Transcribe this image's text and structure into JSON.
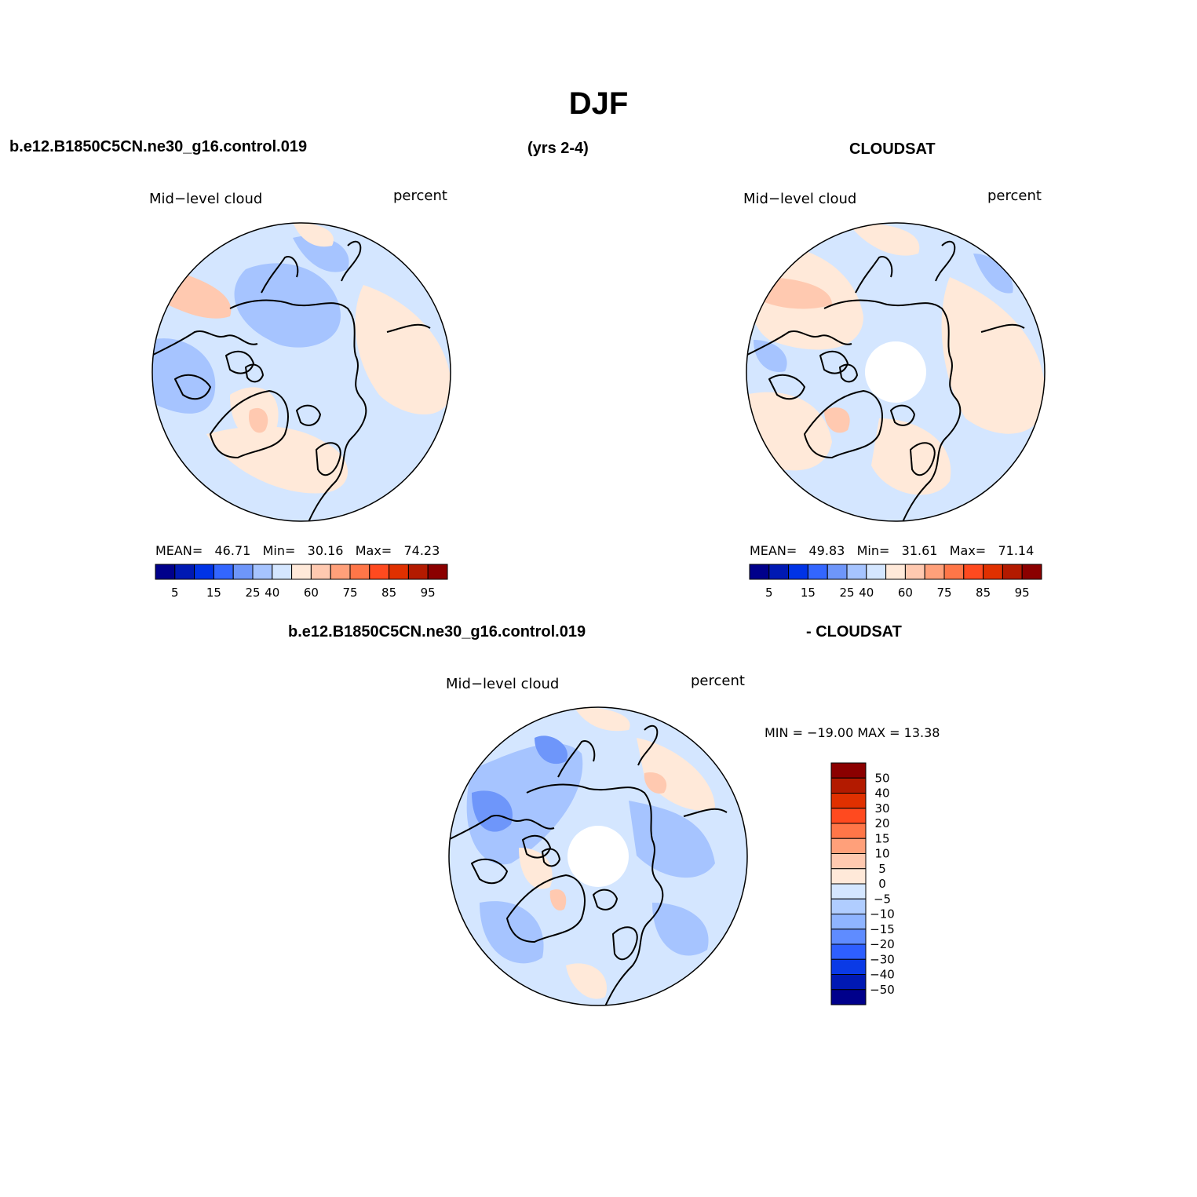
{
  "page": {
    "title": "DJF",
    "top_left_case": "b.e12.B1850C5CN.ne30_g16.control.019",
    "top_years": "(yrs 2-4)",
    "top_right_obs": "CLOUDSAT",
    "bottom_case": "b.e12.B1850C5CN.ne30_g16.control.019",
    "bottom_obs": "- CLOUDSAT"
  },
  "panels": [
    {
      "id": "model",
      "variable_label": "Mid−level cloud",
      "units_label": "percent",
      "stats": {
        "mean_label": "MEAN=",
        "mean": "46.71",
        "min_label": "Min=",
        "min": "30.16",
        "max_label": "Max=",
        "max": "74.23"
      }
    },
    {
      "id": "cloudsat",
      "variable_label": "Mid−level cloud",
      "units_label": "percent",
      "stats": {
        "mean_label": "MEAN=",
        "mean": "49.83",
        "min_label": "Min=",
        "min": "31.61",
        "max_label": "Max=",
        "max": "71.14"
      }
    },
    {
      "id": "difference",
      "variable_label": "Mid−level cloud",
      "units_label": "percent",
      "minmax_text": "MIN = −19.00 MAX =  13.38"
    }
  ],
  "colorbars": {
    "absolute": {
      "colors": [
        "#00008b",
        "#0019b3",
        "#0033e6",
        "#3366ff",
        "#6e96fa",
        "#a6c4ff",
        "#d4e6ff",
        "#ffe9d9",
        "#ffc9b0",
        "#ffa07a",
        "#ff7648",
        "#ff4a1f",
        "#e03000",
        "#b31a00",
        "#8b0000"
      ],
      "tick_labels": [
        "5",
        "15",
        "25",
        "40",
        "60",
        "75",
        "85",
        "95"
      ]
    },
    "difference": {
      "colors": [
        "#8b0000",
        "#b31a00",
        "#e03000",
        "#ff4a1f",
        "#ff7648",
        "#ffa07a",
        "#ffc9b0",
        "#ffe9d9",
        "#d4e6ff",
        "#b0cdff",
        "#8fb4ff",
        "#5f8cff",
        "#2e5fff",
        "#0a3ae6",
        "#0019b3",
        "#00008b"
      ],
      "tick_labels": [
        "50",
        "40",
        "30",
        "20",
        "15",
        "10",
        "5",
        "0",
        "−5",
        "−10",
        "−15",
        "−20",
        "−30",
        "−40",
        "−50"
      ]
    }
  },
  "map_colors": {
    "land_line": "#000000",
    "light_blue": "#d4e6ff",
    "mid_blue": "#a6c4ff",
    "blue": "#6e96fa",
    "light_orange": "#ffe9d9",
    "orange": "#ffc9b0",
    "salmon": "#ffa07a"
  }
}
